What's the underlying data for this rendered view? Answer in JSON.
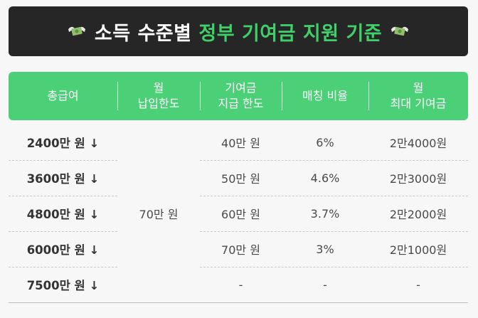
{
  "banner": {
    "title_white": "소득 수준별",
    "title_green": "정부 기여금 지원 기준",
    "icon": "money-wings-icon"
  },
  "header": {
    "col1": "총급여",
    "col2_line1": "월",
    "col2_line2": "납입한도",
    "col3_line1": "기여금",
    "col3_line2": "지급 한도",
    "col4": "매칭 비율",
    "col5_line1": "월",
    "col5_line2": "최대 기여금"
  },
  "monthly_limit": "70만 원",
  "rows": [
    {
      "income": "2400만 원 ↓",
      "grant_limit": "40만 원",
      "ratio": "6%",
      "max": "2만4000원"
    },
    {
      "income": "3600만 원 ↓",
      "grant_limit": "50만 원",
      "ratio": "4.6%",
      "max": "2만3000원"
    },
    {
      "income": "4800만 원 ↓",
      "grant_limit": "60만 원",
      "ratio": "3.7%",
      "max": "2만2000원"
    },
    {
      "income": "6000만 원 ↓",
      "grant_limit": "70만 원",
      "ratio": "3%",
      "max": "2만1000원"
    },
    {
      "income": "7500만 원 ↓",
      "grant_limit": "-",
      "ratio": "-",
      "max": "-"
    }
  ],
  "colors": {
    "green": "#4cd077",
    "title_green": "#3fd06a",
    "banner_bg": "#262626"
  }
}
